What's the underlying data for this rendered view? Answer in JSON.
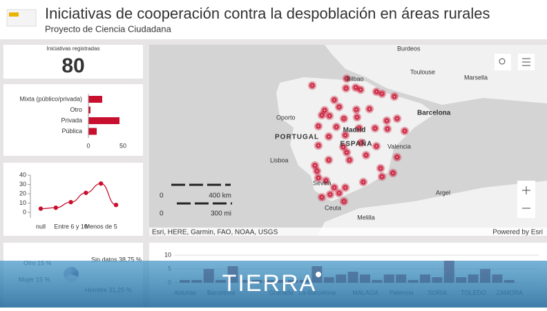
{
  "header": {
    "title": "Iniciativas de cooperación contra la despoblación en áreas rurales",
    "subtitle": "Proyecto de Ciencia Ciudadana"
  },
  "indicator": {
    "label": "Iniciativas registradas",
    "value": 80
  },
  "map": {
    "labels": [
      "Burdeos",
      "Toulouse",
      "Bilbao",
      "Marsella",
      "Oporto",
      "Barcelona",
      "PORTUGAL",
      "Madrid",
      "ESPAÑA",
      "Lisboa",
      "Valencia",
      "Sevilla",
      "Argel",
      "Ceuta",
      "Melilla"
    ],
    "scale": [
      "0",
      "400 km",
      "0",
      "300 mi"
    ],
    "attribution": "Esri, HERE, Garmin, FAO, NOAA, USGS",
    "powered": "Powered by Esri"
  },
  "chart_data": [
    {
      "type": "hbar",
      "categories": [
        "Mixta (público/privada)",
        "Otro",
        "Privada",
        "Pública"
      ],
      "values": [
        20,
        3,
        45,
        12
      ],
      "color": "#c8102e",
      "xlim": [
        0,
        50
      ],
      "xticks": [
        0,
        50
      ]
    },
    {
      "type": "line",
      "categories": [
        "null",
        null,
        "Entre 6 y 10",
        null,
        "Menos de 5",
        null
      ],
      "values": [
        4,
        5,
        11,
        21,
        31,
        8
      ],
      "color": "#c8102e",
      "ylim": [
        0,
        40
      ],
      "yticks": [
        0,
        10,
        20,
        30,
        40
      ]
    },
    {
      "type": "pie",
      "categories": [
        "Otro",
        "Mujer",
        "Sin datos",
        "Hombre"
      ],
      "values": [
        15,
        15,
        38.75,
        31.25
      ],
      "value_labels": [
        "Otro 15 %",
        "Mujer 15 %",
        "Sin datos 38,75 %",
        "Hombre 31,25 %"
      ],
      "colors": [
        "#8e7bb0",
        "#5b4a86",
        "#d9d2e6",
        "#b0a6cc"
      ]
    },
    {
      "type": "bar",
      "categories": [
        "Asturias",
        null,
        null,
        "Barcelona",
        null,
        null,
        null,
        null,
        "Granada",
        null,
        null,
        "La-Barcelona",
        null,
        null,
        null,
        "MÁLAGA",
        null,
        null,
        "Palencia",
        null,
        null,
        "SORIA",
        null,
        null,
        "TOLEDO",
        null,
        null,
        "ZAMORA"
      ],
      "values": [
        1,
        1,
        5,
        1,
        6,
        1,
        1,
        1,
        1,
        1,
        1,
        6,
        2,
        3,
        4,
        3,
        1,
        3,
        3,
        1,
        3,
        2,
        8,
        2,
        3,
        5,
        3,
        1
      ],
      "color": "#8a2838",
      "ylim": [
        0,
        10
      ],
      "yticks": [
        0,
        5,
        10
      ]
    }
  ],
  "watermark": "TIERRA"
}
